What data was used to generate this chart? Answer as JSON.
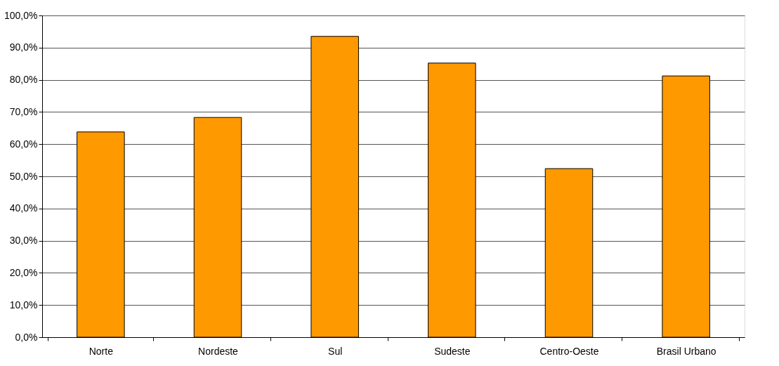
{
  "chart_data": {
    "type": "bar",
    "categories": [
      "Norte",
      "Nordeste",
      "Sul",
      "Sudeste",
      "Centro-Oeste",
      "Brasil Urbano"
    ],
    "values": [
      63.8,
      68.3,
      93.5,
      85.2,
      52.4,
      81.2
    ],
    "color": "#ff9900",
    "ylim": [
      0,
      100
    ],
    "yticks": [
      {
        "value": 0,
        "label": "0,0%"
      },
      {
        "value": 10,
        "label": "10,0%"
      },
      {
        "value": 20,
        "label": "20,0%"
      },
      {
        "value": 30,
        "label": "30,0%"
      },
      {
        "value": 40,
        "label": "40,0%"
      },
      {
        "value": 50,
        "label": "50,0%"
      },
      {
        "value": 60,
        "label": "60,0%"
      },
      {
        "value": 70,
        "label": "70,0%"
      },
      {
        "value": 80,
        "label": "80,0%"
      },
      {
        "value": 90,
        "label": "90,0%"
      },
      {
        "value": 100,
        "label": "100,0%"
      }
    ],
    "grid": "y"
  }
}
